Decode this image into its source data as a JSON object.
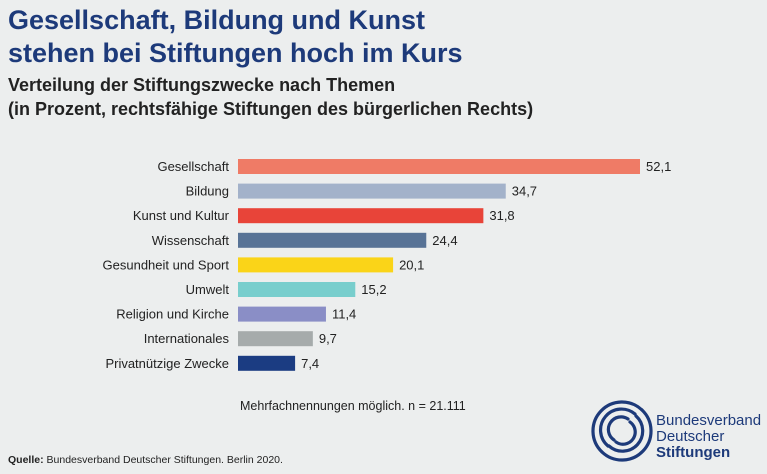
{
  "title_line1": "Gesellschaft, Bildung und Kunst",
  "title_line2": "stehen bei Stiftungen hoch im Kurs",
  "subtitle_line1": "Verteilung der Stiftungszwecke nach Themen",
  "subtitle_line2": "(in Prozent, rechtsfähige Stiftungen des bürgerlichen Rechts)",
  "note": "Mehrfachnennungen möglich. n = 21.111",
  "source_label": "Quelle:",
  "source_text": " Bundesverband Deutscher Stiftungen. Berlin 2020.",
  "logo": {
    "line1": "Bundesverband",
    "line2": "Deutscher",
    "line3": "Stiftungen"
  },
  "chart_data": {
    "type": "bar",
    "orientation": "horizontal",
    "categories": [
      "Gesellschaft",
      "Bildung",
      "Kunst und Kultur",
      "Wissenschaft",
      "Gesundheit und Sport",
      "Umwelt",
      "Religion und Kirche",
      "Internationales",
      "Privatnützige Zwecke"
    ],
    "values": [
      52.1,
      34.7,
      31.8,
      24.4,
      20.1,
      15.2,
      11.4,
      9.7,
      7.4
    ],
    "value_labels": [
      "52,1",
      "34,7",
      "31,8",
      "24,4",
      "20,1",
      "15,2",
      "11,4",
      "9,7",
      "7,4"
    ],
    "colors": [
      "#ef7b66",
      "#a3b2ca",
      "#e84439",
      "#587396",
      "#fad418",
      "#78cecd",
      "#8a8ec6",
      "#a6abab",
      "#1b3c82"
    ],
    "xlim": [
      0,
      52.1
    ],
    "grid": false,
    "legend": "none"
  }
}
